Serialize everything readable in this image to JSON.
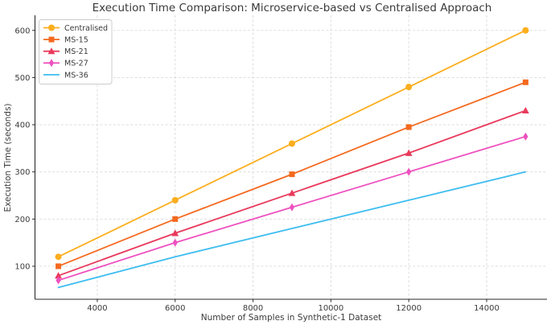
{
  "chart": {
    "title": "Execution Time Comparison: Microservice-based vs Centralised Approach",
    "xlabel": "Number of Samples in Synthetic-1 Dataset",
    "ylabel": "Execution Time (seconds)"
  },
  "chart_data": {
    "type": "line",
    "title": "Execution Time Comparison: Microservice-based vs Centralised Approach",
    "xlabel": "Number of Samples in Synthetic-1 Dataset",
    "ylabel": "Execution Time (seconds)",
    "x": [
      3000,
      6000,
      9000,
      12000,
      15000
    ],
    "series": [
      {
        "name": "Centralised",
        "color": "#FCAE1E",
        "marker": "circle",
        "values": [
          120,
          240,
          360,
          480,
          600
        ]
      },
      {
        "name": "MS-15",
        "color": "#F4691E",
        "marker": "square",
        "values": [
          100,
          200,
          295,
          395,
          490
        ]
      },
      {
        "name": "MS-21",
        "color": "#E93A5C",
        "marker": "triangle",
        "values": [
          80,
          170,
          255,
          340,
          430
        ]
      },
      {
        "name": "MS-27",
        "color": "#EE51C0",
        "marker": "diamond",
        "values": [
          70,
          150,
          225,
          300,
          375
        ]
      },
      {
        "name": "MS-36",
        "color": "#3DBDF0",
        "marker": "none",
        "values": [
          55,
          120,
          180,
          240,
          300
        ]
      }
    ],
    "xticks": [
      4000,
      6000,
      8000,
      10000,
      12000,
      14000
    ],
    "yticks": [
      100,
      200,
      300,
      400,
      500,
      600
    ],
    "xlim": [
      2400,
      15550
    ],
    "ylim": [
      30,
      632
    ],
    "grid": true,
    "grid_style": "dashed",
    "legend_position": "upper left",
    "colors": {
      "grid": "#d9d9d9",
      "spine": "#2b2b2b",
      "tick_text": "#3b3b3b",
      "legend_border": "#cccccc",
      "background": "#ffffff"
    }
  }
}
